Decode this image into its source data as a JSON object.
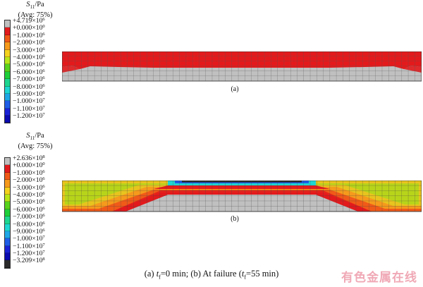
{
  "legend_a": {
    "symbol": "S",
    "subscript": "11",
    "unit": "/Pa",
    "avg": "(Avg: 75%)",
    "entries": [
      {
        "label": "+4.719×10",
        "exp": "6",
        "color": "#c0c0c0"
      },
      {
        "label": "+0.000×10",
        "exp": "0",
        "color": "#e31a1c"
      },
      {
        "label": "−1.000×10",
        "exp": "6",
        "color": "#f05a18"
      },
      {
        "label": "−2.000×10",
        "exp": "6",
        "color": "#f59a1c"
      },
      {
        "label": "−3.000×10",
        "exp": "6",
        "color": "#f4d21e"
      },
      {
        "label": "−4.000×10",
        "exp": "6",
        "color": "#b8e61a"
      },
      {
        "label": "−5.000×10",
        "exp": "6",
        "color": "#58d21c"
      },
      {
        "label": "−6.000×10",
        "exp": "6",
        "color": "#1ecf3a"
      },
      {
        "label": "−7.000×10",
        "exp": "6",
        "color": "#1ed68f"
      },
      {
        "label": "−8.000×10",
        "exp": "6",
        "color": "#1ed6d2"
      },
      {
        "label": "−9.000×10",
        "exp": "6",
        "color": "#1ea6e6"
      },
      {
        "label": "−1.000×10",
        "exp": "7",
        "color": "#1e5de6"
      },
      {
        "label": "−1.100×10",
        "exp": "7",
        "color": "#1a22d6"
      },
      {
        "label": "−1.200×10",
        "exp": "7",
        "color": "#0a0ab0"
      }
    ]
  },
  "legend_b": {
    "symbol": "S",
    "subscript": "11",
    "unit": "/Pa",
    "avg": "(Avg: 75%)",
    "entries": [
      {
        "label": "+2.636×10",
        "exp": "8",
        "color": "#c0c0c0"
      },
      {
        "label": "+0.000×10",
        "exp": "0",
        "color": "#e31a1c"
      },
      {
        "label": "−1.000×10",
        "exp": "6",
        "color": "#f05a18"
      },
      {
        "label": "−2.000×10",
        "exp": "6",
        "color": "#f59a1c"
      },
      {
        "label": "−3.000×10",
        "exp": "6",
        "color": "#f4d21e"
      },
      {
        "label": "−4.000×10",
        "exp": "6",
        "color": "#b8e61a"
      },
      {
        "label": "−5.000×10",
        "exp": "6",
        "color": "#58d21c"
      },
      {
        "label": "−6.000×10",
        "exp": "6",
        "color": "#1ecf3a"
      },
      {
        "label": "−7.000×10",
        "exp": "6",
        "color": "#1ed68f"
      },
      {
        "label": "−8.000×10",
        "exp": "6",
        "color": "#1ed6d2"
      },
      {
        "label": "−9.000×10",
        "exp": "6",
        "color": "#1ea6e6"
      },
      {
        "label": "−1.000×10",
        "exp": "7",
        "color": "#1e5de6"
      },
      {
        "label": "−1.100×10",
        "exp": "7",
        "color": "#1a22d6"
      },
      {
        "label": "−1.200×10",
        "exp": "7",
        "color": "#0a0ab0"
      },
      {
        "label": "−3.209×10",
        "exp": "8",
        "color": "#2a2a2a"
      }
    ]
  },
  "panel_a": {
    "label": "(a)"
  },
  "panel_b": {
    "label": "(b)"
  },
  "figure_caption": {
    "part_a_prefix": "(a) ",
    "t_symbol": "t",
    "t_sub": "f",
    "part_a_value": "=0 min; ",
    "part_b_prefix": "(b) At failure (",
    "part_b_value": "=55 min)"
  },
  "watermark": "有色金属在线"
}
